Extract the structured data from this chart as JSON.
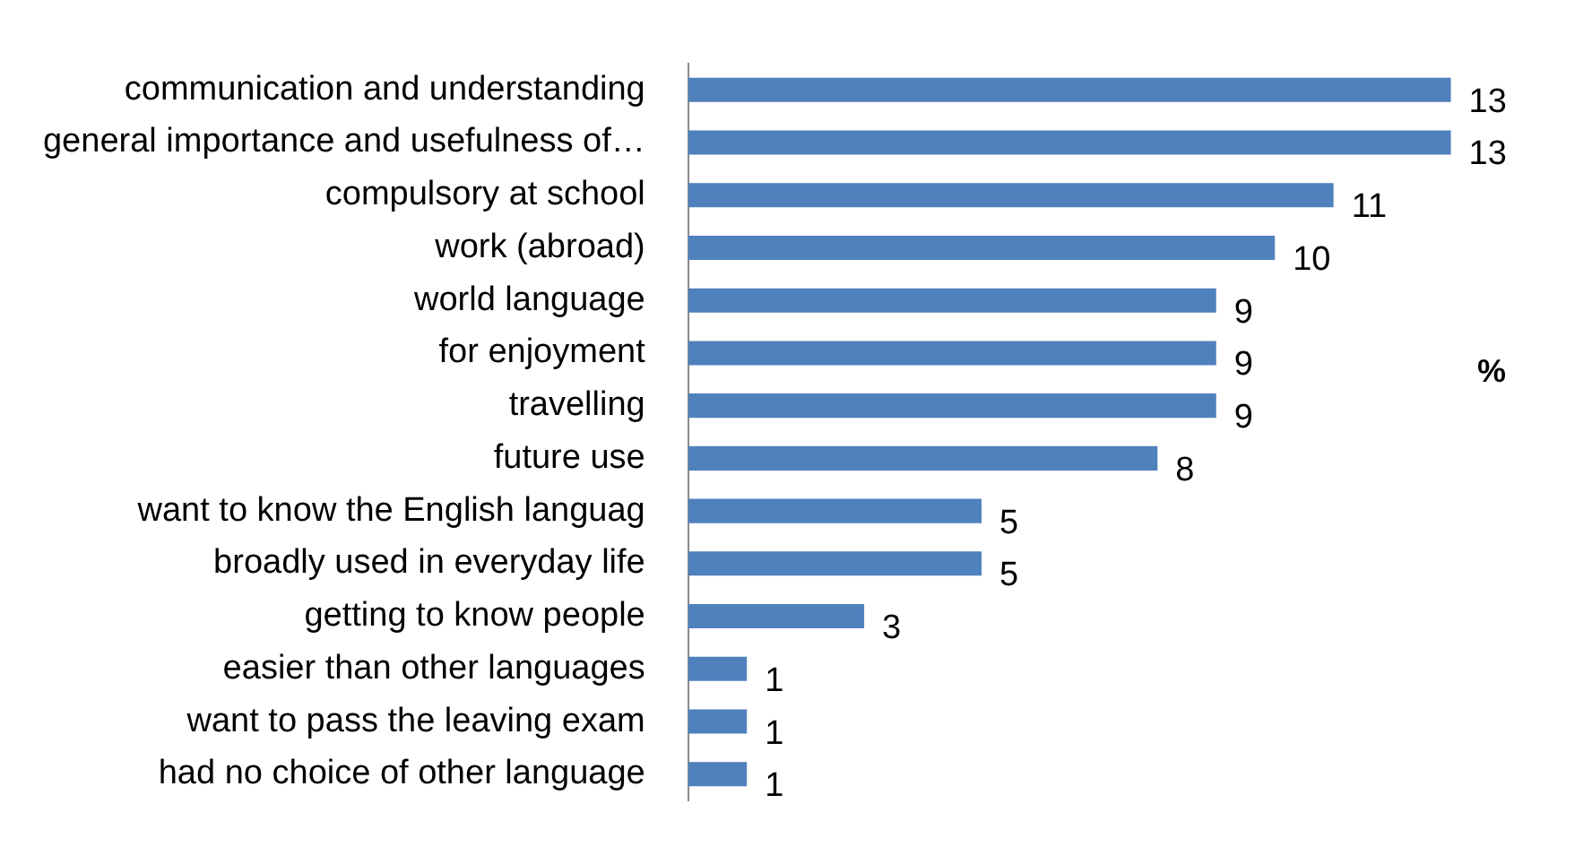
{
  "chart_data": {
    "type": "bar",
    "orientation": "horizontal",
    "categories": [
      "communication and understanding",
      "general importance and usefulness of…",
      "compulsory at school",
      "work (abroad)",
      "world language",
      "for enjoyment",
      "travelling",
      "future use",
      "want to know the English languag",
      "broadly used in everyday life",
      "getting to know people",
      "easier than other languages",
      "want to pass the leaving exam",
      "had no choice of other language"
    ],
    "values": [
      13,
      13,
      11,
      10,
      9,
      9,
      9,
      8,
      5,
      5,
      3,
      1,
      1,
      1
    ],
    "color": "#4f81bd",
    "data_labels": true,
    "annotations": [
      "%"
    ]
  }
}
